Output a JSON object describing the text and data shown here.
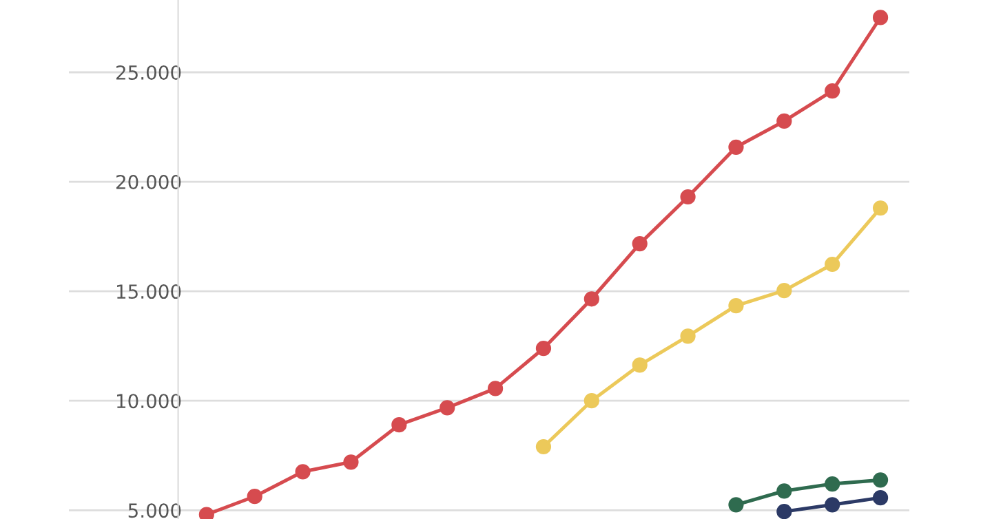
{
  "chart_data": {
    "type": "line",
    "categories": [
      null,
      null,
      null,
      null,
      null,
      null,
      null,
      null,
      null,
      null,
      null,
      null,
      null,
      null,
      null
    ],
    "series": [
      {
        "color": "#d64b4f",
        "values": [
          4800,
          5630,
          6760,
          7200,
          8900,
          9680,
          10560,
          12390,
          14650,
          17170,
          19310,
          21580,
          22770,
          24150,
          27500
        ]
      },
      {
        "color": "#ecc95a",
        "values": [
          null,
          null,
          null,
          null,
          null,
          null,
          null,
          7900,
          10000,
          11630,
          12950,
          14340,
          15030,
          16230,
          18800
        ]
      },
      {
        "color": "#2f6b4f",
        "values": [
          null,
          null,
          null,
          null,
          null,
          null,
          null,
          null,
          null,
          null,
          null,
          5250,
          5880,
          6200,
          6380
        ]
      },
      {
        "color": "#2c3a66",
        "values": [
          null,
          null,
          null,
          null,
          null,
          null,
          null,
          null,
          null,
          null,
          null,
          null,
          4940,
          5250,
          5570
        ]
      }
    ],
    "ylim": [
      4600,
      28300
    ],
    "yticks": [
      {
        "value": 5000,
        "label": "5.000"
      },
      {
        "value": 10000,
        "label": "10.000"
      },
      {
        "value": 15000,
        "label": "15.000"
      },
      {
        "value": 20000,
        "label": "20.000"
      },
      {
        "value": 25000,
        "label": "25.000"
      }
    ],
    "grid": "y",
    "marker": "circle",
    "line_style": "solid",
    "tick_labels": "y"
  }
}
